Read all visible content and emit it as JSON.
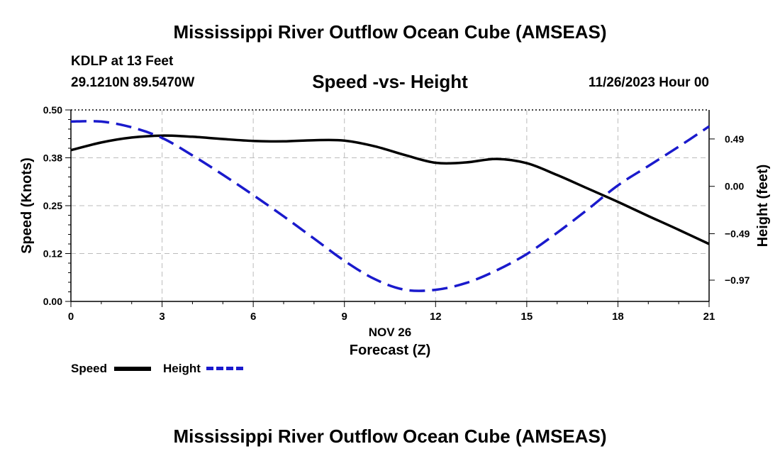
{
  "header": {
    "title": "Mississippi River Outflow Ocean Cube (AMSEAS)",
    "station": "KDLP at 13 Feet",
    "location": "29.1210N  89.5470W",
    "subtitle": "Speed -vs- Height",
    "datetime": "11/26/2023 Hour 00"
  },
  "legend": {
    "speed_label": "Speed",
    "height_label": "Height"
  },
  "footer": {
    "title": "Mississippi River Outflow Ocean Cube (AMSEAS)"
  },
  "colors": {
    "speed": "#000000",
    "height": "#1a1acc",
    "grid": "#bbbbbb"
  },
  "chart_data": {
    "type": "line",
    "title": "Speed -vs- Height",
    "xlabel": "Forecast (Z)",
    "x_date_label": "NOV 26",
    "ylabel": "Speed (Knots)",
    "y2label": "Height (feet)",
    "xlim": [
      0,
      21
    ],
    "ylim": [
      0,
      0.5
    ],
    "y2lim": [
      -1.19,
      0.79
    ],
    "x_ticks": [
      0,
      3,
      6,
      9,
      12,
      15,
      18,
      21
    ],
    "y_ticks": [
      0.0,
      0.125,
      0.25,
      0.375,
      0.5
    ],
    "y_tick_labels": [
      "0.00",
      "0.12",
      "0.25",
      "0.38",
      "0.50"
    ],
    "y2_ticks": [
      -0.97,
      -0.49,
      0.0,
      0.49
    ],
    "y2_tick_labels": [
      "−0.97",
      "−0.49",
      "0.00",
      "0.49"
    ],
    "grid": true,
    "series": [
      {
        "name": "Speed",
        "axis": "left",
        "style": "solid",
        "x": [
          0,
          1,
          2,
          3,
          4,
          5,
          6,
          7,
          8,
          9,
          10,
          11,
          12,
          13,
          14,
          15,
          16,
          17,
          18,
          19,
          20,
          21
        ],
        "values": [
          0.395,
          0.415,
          0.428,
          0.433,
          0.43,
          0.424,
          0.419,
          0.418,
          0.421,
          0.42,
          0.405,
          0.382,
          0.362,
          0.363,
          0.372,
          0.361,
          0.33,
          0.295,
          0.26,
          0.223,
          0.187,
          0.15
        ]
      },
      {
        "name": "Height",
        "axis": "right",
        "style": "dashed",
        "x": [
          0,
          1,
          2,
          3,
          4,
          5,
          6,
          7,
          8,
          9,
          10,
          11,
          12,
          13,
          14,
          15,
          16,
          17,
          18,
          19,
          20,
          21
        ],
        "values": [
          0.67,
          0.67,
          0.61,
          0.5,
          0.32,
          0.12,
          -0.09,
          -0.31,
          -0.54,
          -0.77,
          -0.96,
          -1.07,
          -1.07,
          -1.0,
          -0.87,
          -0.7,
          -0.48,
          -0.24,
          0.01,
          0.21,
          0.41,
          0.62
        ]
      }
    ]
  }
}
